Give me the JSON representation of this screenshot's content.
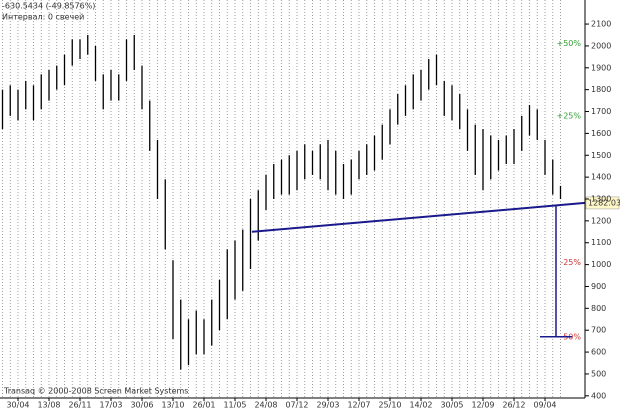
{
  "chart_data": {
    "type": "ohlc",
    "info": "-630.5434 (-49.8576%)",
    "interval": "Интервал: 0 свечей",
    "copyright": "Transaq © 2000-2008 Screen Market Systems",
    "categories": [
      null,
      null,
      "30/04",
      null,
      null,
      null,
      "13/08",
      null,
      null,
      null,
      "26/11",
      null,
      null,
      null,
      "17/03",
      null,
      null,
      null,
      "30/06",
      null,
      null,
      null,
      "13/10",
      null,
      null,
      null,
      "26/01",
      null,
      null,
      null,
      "11/05",
      null,
      null,
      null,
      "24/08",
      null,
      null,
      null,
      "07/12",
      null,
      null,
      null,
      "29/03",
      null,
      null,
      null,
      "12/07",
      null,
      null,
      null,
      "25/10",
      null,
      null,
      null,
      "14/02",
      null,
      null,
      null,
      "30/05",
      null,
      null,
      null,
      "12/09",
      null,
      null,
      null,
      "26/12",
      null,
      null,
      null,
      "09/04",
      null,
      null
    ],
    "series": [
      {
        "name": "High",
        "color": "#000000",
        "values": [
          1800,
          1820,
          1800,
          1840,
          1820,
          1870,
          1890,
          1910,
          1960,
          2030,
          2030,
          2050,
          2000,
          1870,
          1890,
          1870,
          2030,
          2050,
          1910,
          1750,
          1570,
          1390,
          1020,
          840,
          750,
          790,
          750,
          840,
          930,
          1070,
          1110,
          1160,
          1300,
          1340,
          1410,
          1460,
          1480,
          1500,
          1520,
          1550,
          1520,
          1550,
          1570,
          1520,
          1460,
          1480,
          1520,
          1550,
          1590,
          1640,
          1710,
          1780,
          1820,
          1870,
          1890,
          1940,
          1960,
          1840,
          1820,
          1780,
          1710,
          1640,
          1620,
          1590,
          1570,
          1590,
          1620,
          1680,
          1730,
          1710,
          1570,
          1480,
          1360
        ]
      },
      {
        "name": "Low",
        "color": "#000000",
        "values": [
          1620,
          1680,
          1660,
          1710,
          1660,
          1710,
          1750,
          1800,
          1820,
          1910,
          1940,
          1960,
          1840,
          1710,
          1750,
          1750,
          1840,
          1890,
          1710,
          1520,
          1300,
          1070,
          660,
          520,
          540,
          590,
          590,
          630,
          700,
          750,
          840,
          880,
          980,
          1110,
          1250,
          1300,
          1320,
          1320,
          1340,
          1390,
          1410,
          1390,
          1340,
          1320,
          1300,
          1320,
          1390,
          1410,
          1430,
          1480,
          1550,
          1640,
          1680,
          1710,
          1750,
          1800,
          1820,
          1680,
          1660,
          1620,
          1520,
          1410,
          1340,
          1390,
          1430,
          1460,
          1460,
          1520,
          1590,
          1570,
          1410,
          1320,
          1300
        ]
      }
    ],
    "ylim": [
      390,
      2210
    ],
    "yticks": [
      400,
      500,
      600,
      700,
      800,
      900,
      1000,
      1100,
      1200,
      1300,
      1400,
      1500,
      1600,
      1700,
      1800,
      1900,
      2000,
      2100
    ],
    "trendline": {
      "start": 1150,
      "end": 1282.03,
      "color": "#1a1a8c"
    },
    "levels": [
      {
        "value": 2010,
        "label": "+50%",
        "color": "#2e9e2e"
      },
      {
        "value": 1680,
        "label": "+25%",
        "color": "#2e9e2e"
      },
      {
        "value": 1010,
        "label": "-25%",
        "color": "#cc3333"
      },
      {
        "value": 670,
        "label": "-50%",
        "color": "#cc3333"
      }
    ],
    "grid": true
  }
}
